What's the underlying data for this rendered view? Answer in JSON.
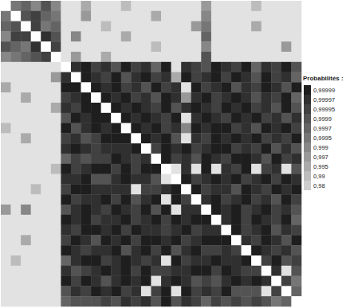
{
  "chart_data": {
    "type": "heatmap",
    "cells": [
      [
        null,
        0.9995,
        0.9997,
        0.999,
        0.9999,
        0.999,
        0.9,
        0.9,
        0.995,
        0.9,
        0.9,
        0.9,
        0.99,
        0.9,
        0.9,
        0.9,
        0.9,
        0.9,
        0.9,
        0.9,
        0.997,
        0.9,
        0.9,
        0.9,
        0.9,
        0.99,
        0.9,
        0.9,
        0.9,
        0.9
      ],
      [
        0.9995,
        null,
        0.9999,
        0.99995,
        0.9997,
        0.9995,
        0.9,
        0.9,
        0.997,
        0.9,
        0.9,
        0.9,
        0.9,
        0.9,
        0.9,
        0.995,
        0.9,
        0.9,
        0.9,
        0.9,
        0.999,
        0.9,
        0.9,
        0.9,
        0.9,
        0.9,
        0.9,
        0.9,
        0.9,
        0.9
      ],
      [
        0.9997,
        0.9999,
        null,
        0.99995,
        0.9995,
        0.9997,
        0.9,
        0.9,
        0.9,
        0.9,
        0.99,
        0.9,
        0.9,
        0.9,
        0.9,
        0.9,
        0.9,
        0.9,
        0.9,
        0.997,
        0.9995,
        0.9,
        0.9,
        0.9,
        0.9,
        0.995,
        0.9,
        0.9,
        0.9,
        0.9
      ],
      [
        0.999,
        0.99995,
        0.99995,
        null,
        0.99997,
        0.9999,
        0.9,
        0.999,
        0.9,
        0.9,
        0.9,
        0.9,
        0.995,
        0.9,
        0.9,
        0.9,
        0.9,
        0.9,
        0.9,
        0.9,
        0.9997,
        0.9,
        0.9,
        0.9,
        0.9,
        0.9,
        0.9,
        0.9,
        0.9,
        0.9
      ],
      [
        0.9999,
        0.9997,
        0.9995,
        0.99997,
        null,
        0.99995,
        0.9,
        0.9,
        0.9,
        0.9,
        0.9,
        0.9,
        0.9,
        0.9,
        0.9,
        0.99,
        0.9,
        0.9,
        0.9,
        0.9,
        0.999,
        0.9,
        0.9,
        0.9,
        0.9,
        0.9,
        0.9,
        0.9,
        0.997,
        0.9
      ],
      [
        0.999,
        0.9995,
        0.9997,
        0.9999,
        0.99995,
        null,
        0.9,
        0.997,
        0.9,
        0.9,
        0.995,
        0.9,
        0.9,
        0.9,
        0.9,
        0.9,
        0.9,
        0.9,
        0.9,
        0.9,
        0.9999,
        0.9,
        0.9,
        0.9,
        0.9,
        0.9,
        0.9,
        0.9,
        0.9,
        0.9
      ],
      [
        0.9,
        0.9,
        0.9,
        0.9,
        0.9,
        0.9,
        null,
        0.99997,
        0.99999,
        0.99995,
        0.99997,
        0.9999,
        0.99999,
        0.99995,
        0.99997,
        0.9997,
        0.99999,
        0.9,
        0.99997,
        0.99995,
        0.9999,
        0.99999,
        0.99997,
        0.99995,
        0.99999,
        0.9997,
        0.99997,
        0.99995,
        0.99999,
        0.9999
      ],
      [
        0.9,
        0.9,
        0.9,
        0.9,
        0.9,
        0.997,
        0.99997,
        null,
        0.99999,
        0.99997,
        0.99995,
        0.99999,
        0.9999,
        0.99997,
        0.99999,
        0.99995,
        0.99997,
        0.995,
        0.99999,
        0.99995,
        0.99997,
        0.99999,
        0.99995,
        0.99999,
        0.99997,
        0.9999,
        0.99999,
        0.99995,
        0.99997,
        0.9997
      ],
      [
        0.995,
        0.9,
        0.9,
        0.9,
        0.9,
        0.9,
        0.99999,
        0.99999,
        null,
        0.99999,
        0.99997,
        0.99999,
        0.99995,
        0.99997,
        0.9999,
        0.99999,
        0.99995,
        0.99997,
        0.9,
        0.99999,
        0.99995,
        0.99997,
        0.99999,
        0.9999,
        0.99997,
        0.99995,
        0.99999,
        0.99997,
        0.9999,
        0.99999
      ],
      [
        0.9,
        0.9,
        0.995,
        0.9,
        0.9,
        0.9,
        0.99995,
        0.99997,
        0.99999,
        null,
        0.99999,
        0.99997,
        0.99999,
        0.99995,
        0.99997,
        0.9999,
        0.99999,
        0.99997,
        0.997,
        0.99997,
        0.99999,
        0.99995,
        0.99997,
        0.99999,
        0.99997,
        0.9999,
        0.99997,
        0.99995,
        0.99999,
        0.9997
      ],
      [
        0.9,
        0.9,
        0.9,
        0.9,
        0.9,
        0.995,
        0.99997,
        0.99995,
        0.99999,
        0.99999,
        null,
        0.99999,
        0.99997,
        0.99999,
        0.99997,
        0.99995,
        0.99999,
        0.9999,
        0.99997,
        0.99999,
        0.99997,
        0.99995,
        0.99999,
        0.99997,
        0.99999,
        0.99995,
        0.99997,
        0.9999,
        0.99999,
        0.9999
      ],
      [
        0.9,
        0.9,
        0.9,
        0.9,
        0.9,
        0.9,
        0.9999,
        0.99999,
        0.99997,
        0.99999,
        0.99999,
        null,
        0.99999,
        0.99997,
        0.99999,
        0.99997,
        0.99995,
        0.99999,
        0.9,
        0.99997,
        0.99999,
        0.99997,
        0.99995,
        0.99999,
        0.99997,
        0.99999,
        0.99995,
        0.99997,
        0.9999,
        0.99997
      ],
      [
        0.99,
        0.9,
        0.9,
        0.9,
        0.9,
        0.9,
        0.99999,
        0.9999,
        0.99997,
        0.99999,
        0.99997,
        0.99999,
        null,
        0.99999,
        0.99997,
        0.99999,
        0.99995,
        0.99997,
        0.999,
        0.99999,
        0.99997,
        0.99999,
        0.99999,
        0.99995,
        0.99997,
        0.9999,
        0.99999,
        0.99997,
        0.99999,
        0.99995
      ],
      [
        0.9,
        0.9,
        0.995,
        0.9,
        0.9,
        0.9,
        0.99995,
        0.99997,
        0.9999,
        0.99995,
        0.99999,
        0.99999,
        0.99999,
        null,
        0.99999,
        0.99997,
        0.99999,
        0.9999,
        0.9,
        0.99997,
        0.99995,
        0.99999,
        0.99997,
        0.99999,
        0.99997,
        0.99999,
        0.99995,
        0.99997,
        0.99995,
        0.99999
      ],
      [
        0.9,
        0.9,
        0.9,
        0.9,
        0.9,
        0.9,
        0.99997,
        0.99999,
        0.99997,
        0.99995,
        0.99997,
        0.99997,
        0.99997,
        0.99999,
        null,
        0.99995,
        0.99999,
        0.99997,
        0.99999,
        0.99995,
        0.99997,
        0.99999,
        0.99999,
        0.99995,
        0.99997,
        0.99995,
        0.99999,
        0.9999,
        0.99997,
        0.9999
      ],
      [
        0.9,
        0.9,
        0.9,
        0.9,
        0.9,
        0.9,
        0.9997,
        0.99995,
        0.9999,
        0.99995,
        0.99995,
        0.99999,
        0.99997,
        0.99995,
        0.99997,
        null,
        0.99999,
        0.99995,
        0.99997,
        0.9999,
        0.99999,
        0.99997,
        0.99995,
        0.99999,
        0.99999,
        0.99997,
        0.9999,
        0.99999,
        0.99995,
        0.99997
      ],
      [
        0.9,
        0.9,
        0.9,
        0.9,
        0.9,
        0.99,
        0.99999,
        0.99995,
        0.99997,
        0.99999,
        0.99999,
        0.99995,
        0.99999,
        0.99995,
        0.99999,
        0.99999,
        null,
        0.9,
        0.99997,
        0.9,
        0.99999,
        0.9,
        0.99997,
        0.99995,
        0.99999,
        0.9,
        0.99995,
        0.99997,
        0.9,
        0.9999
      ],
      [
        0.9,
        0.9,
        0.9,
        0.9,
        0.9,
        0.9,
        0.99997,
        0.99997,
        0.99999,
        0.9999,
        0.9999,
        0.99997,
        0.99999,
        0.99997,
        0.99997,
        0.9999,
        0.9,
        null,
        0.99999,
        0.99995,
        0.99997,
        0.99999,
        0.99997,
        0.99999,
        0.99995,
        0.99997,
        0.99999,
        0.99995,
        0.99999,
        0.99997
      ],
      [
        0.9,
        0.9,
        0.9,
        0.99,
        0.9,
        0.9,
        0.99995,
        0.99999,
        0.99999,
        0.99997,
        0.99997,
        0.99997,
        0.99997,
        0.9,
        0.99995,
        0.99995,
        0.99997,
        0.99999,
        null,
        0.99999,
        0.99995,
        0.99997,
        0.99997,
        0.9999,
        0.99999,
        0.99997,
        0.99995,
        0.99999,
        0.99997,
        0.99999
      ],
      [
        0.9,
        0.9,
        0.9,
        0.9,
        0.9,
        0.9,
        0.99999,
        0.99995,
        0.99997,
        0.99997,
        0.99999,
        0.99995,
        0.99999,
        0.9999,
        0.99997,
        0.99999,
        0.9,
        0.99999,
        0.99995,
        null,
        0.99997,
        0.99999,
        0.99995,
        0.99997,
        0.99999,
        0.99995,
        0.99997,
        0.9999,
        0.99999,
        0.99995
      ],
      [
        0.997,
        0.9,
        0.999,
        0.9,
        0.9,
        0.9,
        0.9999,
        0.99997,
        0.99999,
        0.99997,
        0.99995,
        0.99999,
        0.99997,
        0.99995,
        0.99999,
        0.9999,
        0.99999,
        0.9,
        0.99997,
        0.99997,
        null,
        0.99999,
        0.99997,
        0.99999,
        0.99995,
        0.99997,
        0.99999,
        0.99995,
        0.99997,
        0.9999
      ],
      [
        0.9,
        0.9,
        0.9,
        0.9,
        0.9,
        0.9,
        0.99999,
        0.99997,
        0.99999,
        0.99995,
        0.99997,
        0.99997,
        0.99999,
        0.99995,
        0.99997,
        0.99999,
        0.99995,
        0.99999,
        0.99997,
        0.99999,
        0.99999,
        null,
        0.99997,
        0.99999,
        0.99995,
        0.99999,
        0.99997,
        0.99995,
        0.99999,
        0.9997
      ],
      [
        0.9,
        0.9,
        0.9,
        0.9,
        0.9,
        0.9,
        0.99997,
        0.99995,
        0.99999,
        0.99999,
        0.99997,
        0.99999,
        0.99995,
        0.99999,
        0.99997,
        0.99997,
        0.99995,
        0.99997,
        0.99999,
        0.99995,
        0.99997,
        0.99997,
        null,
        0.99999,
        0.99995,
        0.99997,
        0.99999,
        0.9999,
        0.99997,
        0.99995
      ],
      [
        0.9,
        0.9,
        0.995,
        0.9,
        0.9,
        0.9,
        0.99995,
        0.99999,
        0.99997,
        0.9999,
        0.99999,
        0.99997,
        0.99999,
        0.99995,
        0.99999,
        0.99999,
        0.99997,
        0.99999,
        0.99995,
        0.99997,
        0.99999,
        0.99999,
        0.99999,
        null,
        0.99997,
        0.99995,
        0.99999,
        0.99997,
        0.9999,
        0.99999
      ],
      [
        0.9,
        0.9,
        0.9,
        0.9,
        0.9,
        0.9,
        0.99999,
        0.99997,
        0.99995,
        0.99997,
        0.99997,
        0.99999,
        0.9999,
        0.99997,
        0.99999,
        0.99995,
        0.99999,
        0.9999,
        0.99997,
        0.99999,
        0.99995,
        0.99995,
        0.99997,
        0.99995,
        null,
        0.99999,
        0.99997,
        0.99995,
        0.99997,
        0.9999
      ],
      [
        0.9,
        0.99,
        0.9,
        0.9,
        0.9,
        0.9,
        0.9997,
        0.99997,
        0.99999,
        0.99999,
        0.99995,
        0.99997,
        0.99999,
        0.99997,
        0.99995,
        0.99997,
        0.9,
        0.99999,
        0.99995,
        0.99997,
        0.99997,
        0.99999,
        0.99997,
        0.99997,
        0.99999,
        null,
        0.99995,
        0.99999,
        0.9999,
        0.99995
      ],
      [
        0.9,
        0.9,
        0.9,
        0.9,
        0.9,
        0.9,
        0.99997,
        0.9999,
        0.99995,
        0.99997,
        0.99999,
        0.99997,
        0.99999,
        0.99995,
        0.99999,
        0.99995,
        0.99995,
        0.99997,
        0.99997,
        0.99999,
        0.99999,
        0.99995,
        0.99999,
        0.99997,
        0.99995,
        0.99995,
        null,
        0.99997,
        0.9,
        0.9999
      ],
      [
        0.9,
        0.9,
        0.9,
        0.9,
        0.9,
        0.9,
        0.99999,
        0.99995,
        0.99999,
        0.99997,
        0.9999,
        0.99997,
        0.99999,
        0.99997,
        0.99999,
        0.9,
        0.99997,
        0.99999,
        0.99997,
        0.9999,
        0.99995,
        0.9999,
        0.99997,
        0.99999,
        0.99997,
        0.99999,
        0.99997,
        null,
        0.99995,
        0.9995
      ],
      [
        0.9,
        0.9,
        0.9,
        0.9,
        0.9,
        0.9,
        0.9999,
        0.99997,
        0.99995,
        0.99999,
        0.99997,
        0.99999,
        0.99995,
        0.99997,
        0.9,
        0.99995,
        0.99999,
        0.9,
        0.99999,
        0.99995,
        0.99997,
        0.99995,
        0.99999,
        0.9999,
        0.9999,
        0.9999,
        0.9,
        0.99995,
        null,
        0.9997
      ],
      [
        0.9,
        0.9,
        0.9,
        0.9,
        0.9,
        0.9,
        0.9997,
        0.9999,
        0.9999,
        0.9999,
        0.99995,
        0.9999,
        0.99997,
        0.99995,
        0.99997,
        0.9999,
        0.99999,
        0.9999,
        0.99997,
        0.99995,
        0.9997,
        0.99995,
        0.9999,
        0.99995,
        0.9999,
        0.99995,
        0.9999,
        0.9995,
        0.9997,
        null
      ]
    ],
    "colorbar": {
      "label": "Probabilités :",
      "range": [
        0.98,
        0.99999
      ],
      "ticks": [
        {
          "value": 0.99999,
          "label": "0,99999"
        },
        {
          "value": 0.99997,
          "label": "0,99997"
        },
        {
          "value": 0.99995,
          "label": "0,99995"
        },
        {
          "value": 0.9999,
          "label": "0,9999"
        },
        {
          "value": 0.9997,
          "label": "0,9997"
        },
        {
          "value": 0.9995,
          "label": "0,9995"
        },
        {
          "value": 0.999,
          "label": "0,999"
        },
        {
          "value": 0.997,
          "label": "0,997"
        },
        {
          "value": 0.995,
          "label": "0,995"
        },
        {
          "value": 0.99,
          "label": "0,99"
        },
        {
          "value": 0.98,
          "label": "0,98"
        }
      ]
    }
  }
}
